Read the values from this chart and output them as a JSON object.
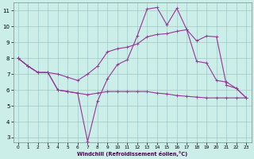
{
  "xlabel": "Windchill (Refroidissement éolien,°C)",
  "background_color": "#cceee8",
  "line_color": "#993399",
  "grid_color": "#99cccc",
  "xlim": [
    -0.5,
    23.5
  ],
  "ylim": [
    2.7,
    11.5
  ],
  "xticks": [
    0,
    1,
    2,
    3,
    4,
    5,
    6,
    7,
    8,
    9,
    10,
    11,
    12,
    13,
    14,
    15,
    16,
    17,
    18,
    19,
    20,
    21,
    22,
    23
  ],
  "yticks": [
    3,
    4,
    5,
    6,
    7,
    8,
    9,
    10,
    11
  ],
  "series1_x": [
    0,
    1,
    2,
    3,
    4,
    5,
    6,
    7,
    8,
    9,
    10,
    11,
    12,
    13,
    14,
    15,
    16,
    17,
    18,
    19,
    20,
    21,
    22,
    23
  ],
  "series1_y": [
    8.0,
    7.5,
    7.1,
    7.1,
    6.0,
    5.9,
    5.8,
    2.75,
    5.3,
    6.7,
    7.6,
    7.9,
    9.4,
    11.1,
    11.2,
    10.1,
    11.15,
    9.8,
    7.8,
    7.7,
    6.6,
    6.5,
    6.1,
    5.5
  ],
  "series2_x": [
    0,
    1,
    2,
    3,
    4,
    5,
    6,
    7,
    8,
    9,
    10,
    11,
    12,
    13,
    14,
    15,
    16,
    17,
    18,
    19,
    20,
    21,
    22,
    23
  ],
  "series2_y": [
    8.0,
    7.5,
    7.1,
    7.1,
    7.0,
    6.8,
    6.6,
    7.0,
    7.5,
    8.4,
    8.6,
    8.7,
    8.9,
    9.35,
    9.5,
    9.55,
    9.7,
    9.8,
    9.1,
    9.4,
    9.35,
    6.3,
    6.1,
    5.5
  ],
  "series3_x": [
    0,
    1,
    2,
    3,
    4,
    5,
    6,
    7,
    8,
    9,
    10,
    11,
    12,
    13,
    14,
    15,
    16,
    17,
    18,
    19,
    20,
    21,
    22,
    23
  ],
  "series3_y": [
    8.0,
    7.5,
    7.1,
    7.1,
    6.0,
    5.9,
    5.8,
    5.7,
    5.8,
    5.9,
    5.9,
    5.9,
    5.9,
    5.9,
    5.8,
    5.75,
    5.65,
    5.6,
    5.55,
    5.5,
    5.5,
    5.5,
    5.5,
    5.5
  ],
  "markersize": 2.5,
  "linewidth": 0.8
}
